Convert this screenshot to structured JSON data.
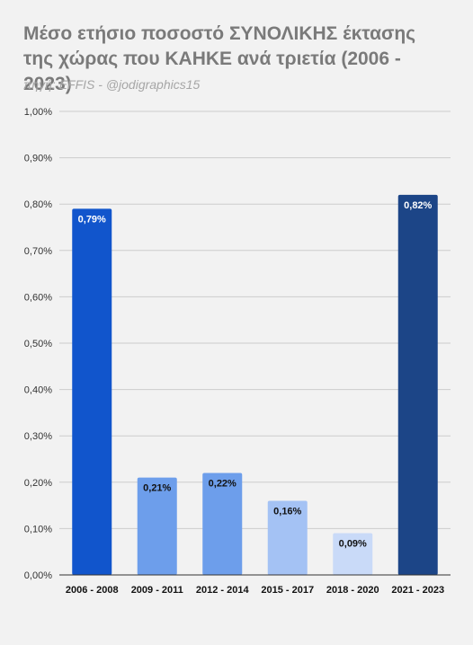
{
  "chart_data": {
    "type": "bar",
    "title": "Μέσο ετήσιο ποσοστό ΣΥΝΟΛΙΚΗΣ έκτασης της χώρας που ΚΑΗΚΕ ανά τριετία (2006 - 2023)",
    "subtitle": "πηγή: EFFIS - @jodigraphics15",
    "categories": [
      "2006 - 2008",
      "2009 - 2011",
      "2012 - 2014",
      "2015 - 2017",
      "2018 - 2020",
      "2021 - 2023"
    ],
    "values": [
      0.79,
      0.21,
      0.22,
      0.16,
      0.09,
      0.82
    ],
    "value_labels": [
      "0,79%",
      "0,21%",
      "0,22%",
      "0,16%",
      "0,09%",
      "0,82%"
    ],
    "bar_colors": [
      "#1155cc",
      "#6d9eeb",
      "#6d9eeb",
      "#a4c2f4",
      "#c9daf8",
      "#1c4587"
    ],
    "label_colors": [
      "#ffffff",
      "#111111",
      "#111111",
      "#111111",
      "#111111",
      "#ffffff"
    ],
    "ylim": [
      0,
      1.0
    ],
    "yticks": [
      "0,00%",
      "0,10%",
      "0,20%",
      "0,30%",
      "0,40%",
      "0,50%",
      "0,60%",
      "0,70%",
      "0,80%",
      "0,90%",
      "1,00%"
    ],
    "xlabel": "",
    "ylabel": "",
    "grid": true,
    "legend": "none"
  }
}
